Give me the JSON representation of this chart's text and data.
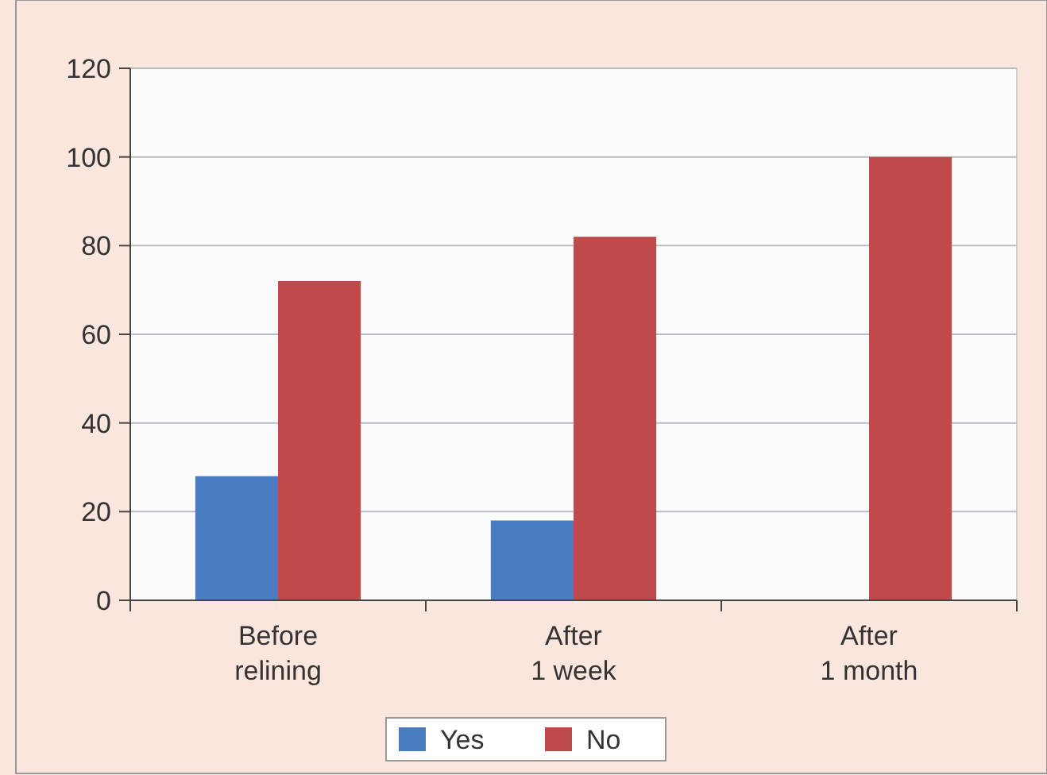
{
  "chart_data": {
    "type": "bar",
    "categories": [
      "Before relining",
      "After 1 week",
      "After 1 month"
    ],
    "series": [
      {
        "name": "Yes",
        "color": "#4a7cc0",
        "values": [
          28,
          18,
          0
        ]
      },
      {
        "name": "No",
        "color": "#be4a4b",
        "values": [
          72,
          82,
          100
        ]
      }
    ],
    "ylim": [
      0,
      120
    ],
    "yticks": [
      0,
      20,
      40,
      60,
      80,
      100,
      120
    ],
    "grid": "y",
    "legend": "bottom"
  }
}
